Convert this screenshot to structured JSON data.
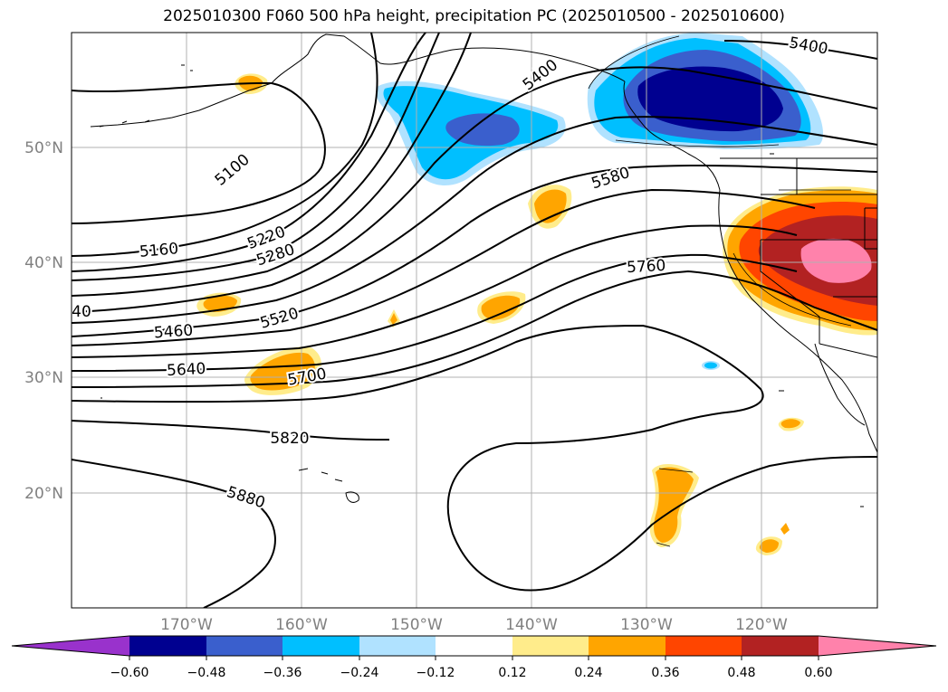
{
  "title": "2025010300 F060 500 hPa height, precipitation PC (2025010500 - 2025010600)",
  "map": {
    "lat_labels": [
      "50°N",
      "40°N",
      "30°N",
      "20°N"
    ],
    "lon_labels": [
      "170°W",
      "160°W",
      "150°W",
      "140°W",
      "130°W",
      "120°W"
    ],
    "contour_labels": [
      "5100",
      "5160",
      "5220",
      "5280",
      "5400",
      "5400",
      "40",
      "5460",
      "5520",
      "5580",
      "5640",
      "5700",
      "5760",
      "5820",
      "5880"
    ],
    "gridlines": true
  },
  "colorbar": {
    "ticks": [
      "−0.60",
      "−0.48",
      "−0.36",
      "−0.24",
      "−0.12",
      "0.12",
      "0.24",
      "0.36",
      "0.48",
      "0.60"
    ],
    "colors": {
      "extend_min": "#9932CC",
      "b1": "#000090",
      "b2": "#3A5FCD",
      "b3": "#00BFFF",
      "b4": "#B0E2FF",
      "b5": "#FFFFFF",
      "b6": "#FFEC8B",
      "b7": "#FFA500",
      "b8": "#FF4500",
      "b9": "#B22222",
      "extend_max": "#FF82AB"
    }
  }
}
